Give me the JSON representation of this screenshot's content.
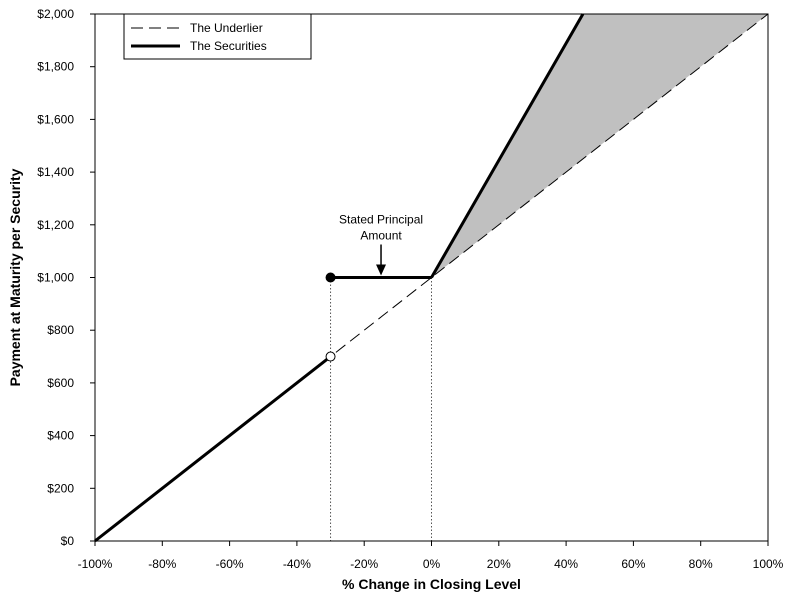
{
  "chart_data": {
    "type": "line",
    "xlabel": "% Change in Closing Level",
    "ylabel": "Payment at Maturity per Security",
    "xlim": [
      -100,
      100
    ],
    "ylim": [
      0,
      2000
    ],
    "x_ticks": [
      -100,
      -80,
      -60,
      -40,
      -20,
      0,
      20,
      40,
      60,
      80,
      100
    ],
    "x_tick_labels": [
      "-100%",
      "-80%",
      "-60%",
      "-40%",
      "-20%",
      "0%",
      "20%",
      "40%",
      "60%",
      "80%",
      "100%"
    ],
    "y_ticks": [
      0,
      200,
      400,
      600,
      800,
      1000,
      1200,
      1400,
      1600,
      1800,
      2000
    ],
    "y_tick_labels": [
      "$0",
      "$200",
      "$400",
      "$600",
      "$800",
      "$1,000",
      "$1,200",
      "$1,400",
      "$1,600",
      "$1,800",
      "$2,000"
    ],
    "legend": {
      "placement": "top-left",
      "entries": [
        "The Underlier",
        "The Securities"
      ]
    },
    "series": [
      {
        "name": "The Underlier",
        "style": "dashed",
        "color": "#000000",
        "x": [
          -100,
          100
        ],
        "y": [
          0,
          2000
        ]
      },
      {
        "name": "The Securities",
        "style": "solid",
        "color": "#000000",
        "segments": [
          {
            "x": [
              -100,
              -30
            ],
            "y": [
              0,
              700
            ]
          },
          {
            "x": [
              -30,
              0
            ],
            "y": [
              1000,
              1000
            ]
          },
          {
            "x": [
              0,
              45
            ],
            "y": [
              1000,
              2000
            ]
          }
        ]
      }
    ],
    "points": [
      {
        "x": -30,
        "y": 1000,
        "fill": "filled"
      },
      {
        "x": -30,
        "y": 700,
        "fill": "open"
      }
    ],
    "reference_lines": [
      {
        "x": -30,
        "y_top": 1000
      },
      {
        "x": 0,
        "y_top": 1000
      }
    ],
    "shaded_region": {
      "color": "#c0c0c0",
      "polygon": [
        [
          0,
          1000
        ],
        [
          45,
          2000
        ],
        [
          100,
          2000
        ]
      ]
    },
    "annotation": {
      "lines": [
        "Stated Principal",
        "Amount"
      ],
      "arrow_x": -15,
      "arrow_y": 1000
    }
  }
}
